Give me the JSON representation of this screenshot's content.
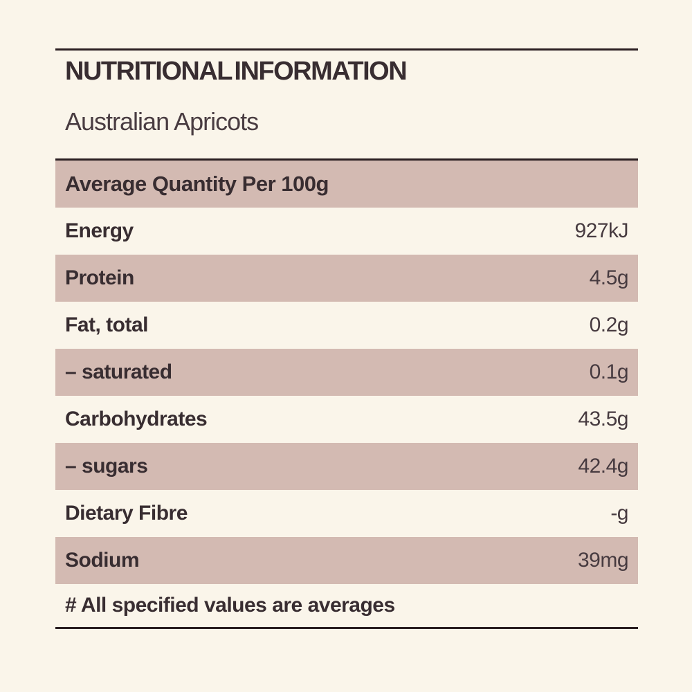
{
  "colors": {
    "bg": "#faf5ea",
    "row_alt": "#d3bab2",
    "rule": "#2a1e21",
    "text_dark": "#382d31",
    "text_value": "#473b40",
    "text_subtitle": "#493c41"
  },
  "header": {
    "title": "NUTRITIONAL INFORMATION",
    "subtitle": "Australian Apricots"
  },
  "table": {
    "header": "Average Quantity Per 100g",
    "rows": [
      {
        "label": "Energy",
        "value": "927kJ"
      },
      {
        "label": "Protein",
        "value": "4.5g"
      },
      {
        "label": "Fat, total",
        "value": "0.2g"
      },
      {
        "label": "– saturated",
        "value": "0.1g"
      },
      {
        "label": "Carbohydrates",
        "value": "43.5g"
      },
      {
        "label": "– sugars",
        "value": "42.4g"
      },
      {
        "label": "Dietary Fibre",
        "value": "-g"
      },
      {
        "label": "Sodium",
        "value": "39mg"
      }
    ],
    "footnote": "# All specified values are averages"
  }
}
